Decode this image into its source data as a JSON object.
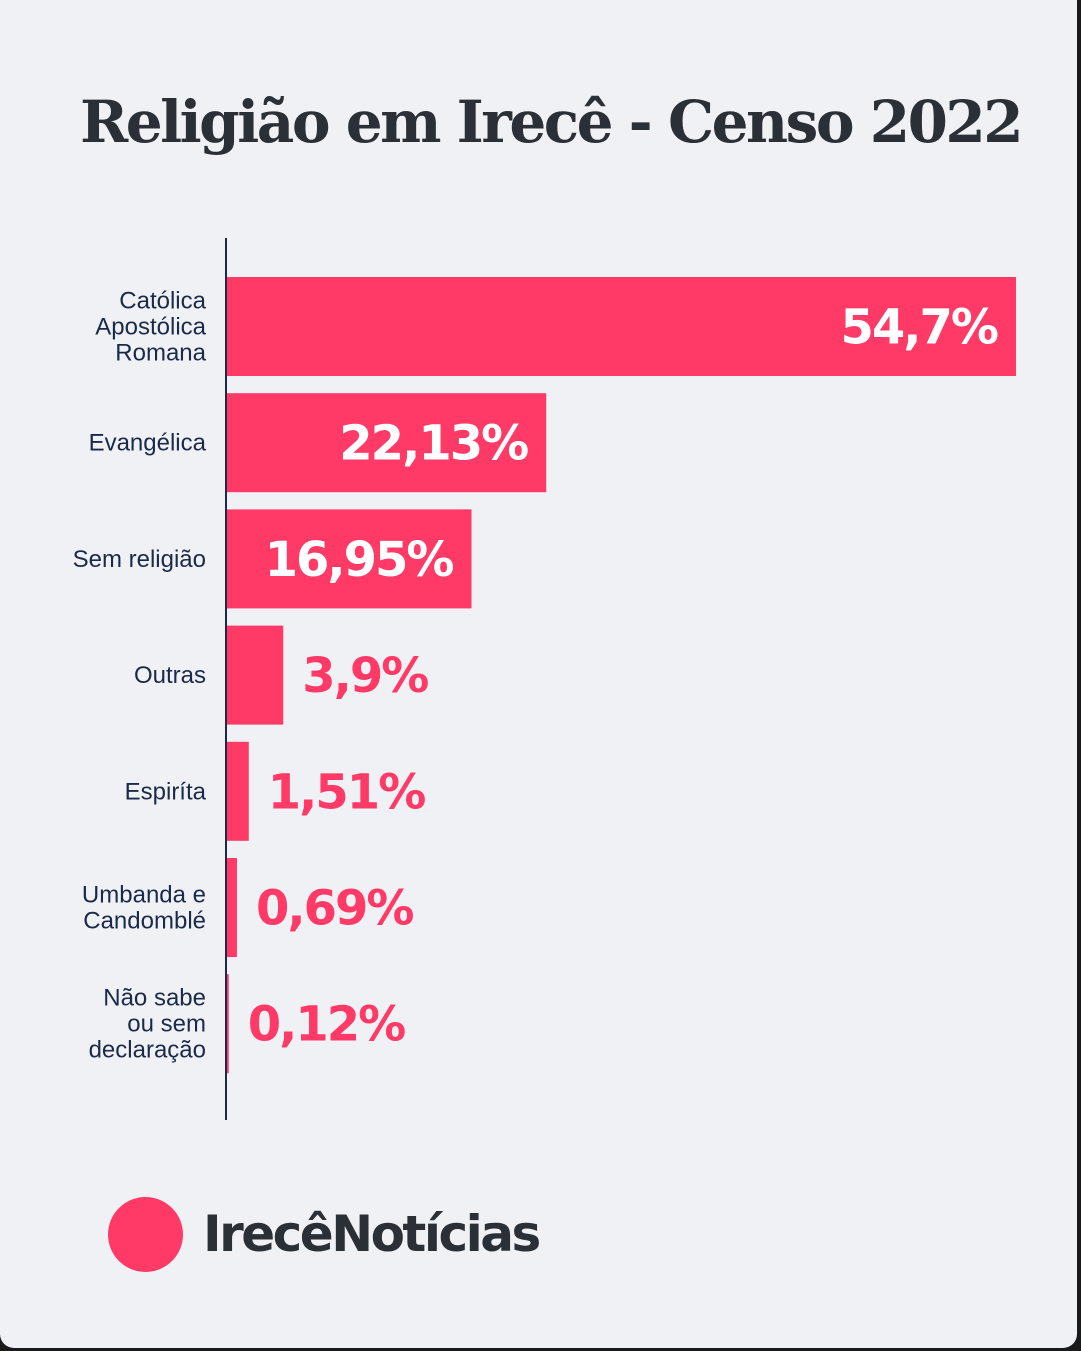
{
  "header": {
    "title": "Religião em Irecê - Censo 2022"
  },
  "chart_data": {
    "type": "bar",
    "orientation": "horizontal",
    "title": "Religião em Irecê - Censo 2022",
    "categories": [
      [
        "Católica",
        "Apostólica",
        "Romana"
      ],
      [
        "Evangélica"
      ],
      [
        "Sem religião"
      ],
      [
        "Outras"
      ],
      [
        "Espiríta"
      ],
      [
        "Umbanda e",
        "Candomblé"
      ],
      [
        "Não sabe",
        "ou sem",
        "declaração"
      ]
    ],
    "values": [
      54.7,
      22.13,
      16.95,
      3.9,
      1.51,
      0.69,
      0.12
    ],
    "value_labels": [
      "54,7%",
      "22,13%",
      "16,95%",
      "3,9%",
      "1,51%",
      "0,69%",
      "0,12%"
    ],
    "unit": "%",
    "xlim": [
      0,
      54.7
    ],
    "grid": false,
    "legend": "none",
    "colors": {
      "bar": "#ff3a67",
      "label_inside": "#ffffff",
      "label_outside": "#ff3a67",
      "category_text": "#1b2a48",
      "axis": "#1b2a48"
    }
  },
  "footer": {
    "brand_name": "IrecêNotícias"
  }
}
